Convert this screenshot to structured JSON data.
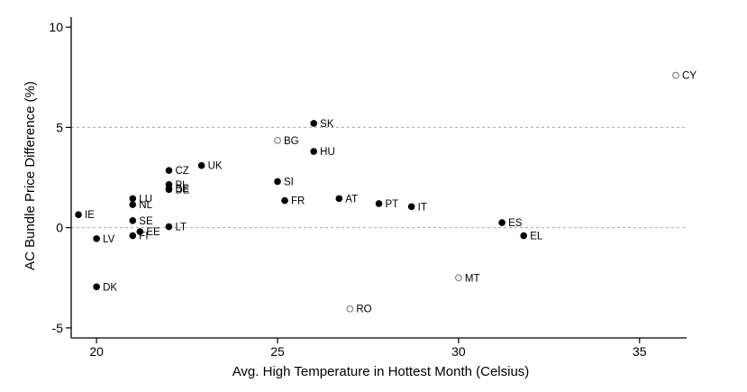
{
  "chart_data": {
    "type": "scatter",
    "xlabel": "Avg. High Temperature in Hottest Month (Celsius)",
    "ylabel": "AC Bundle Price Difference (%)",
    "xlim": [
      19.3,
      36.3
    ],
    "ylim": [
      -5.5,
      10.5
    ],
    "xticks": [
      20,
      25,
      30,
      35
    ],
    "yticks": [
      -5,
      0,
      5,
      10
    ],
    "reference_lines_y": [
      0,
      5
    ],
    "grid": false,
    "legend": "none",
    "colors": {
      "filled": "#000000",
      "hollow": "#888888",
      "ref_line": "#aaaaaa"
    },
    "points": [
      {
        "label": "IE",
        "x": 19.5,
        "y": 0.65,
        "marker": "filled"
      },
      {
        "label": "LV",
        "x": 20.0,
        "y": -0.55,
        "marker": "filled"
      },
      {
        "label": "DK",
        "x": 20.0,
        "y": -2.95,
        "marker": "filled"
      },
      {
        "label": "LU",
        "x": 21.0,
        "y": 1.45,
        "marker": "filled"
      },
      {
        "label": "NL",
        "x": 21.0,
        "y": 1.15,
        "marker": "filled"
      },
      {
        "label": "SE",
        "x": 21.0,
        "y": 0.35,
        "marker": "filled"
      },
      {
        "label": "FI",
        "x": 21.0,
        "y": -0.4,
        "marker": "filled"
      },
      {
        "label": "EE",
        "x": 21.2,
        "y": -0.2,
        "marker": "filled"
      },
      {
        "label": "CZ",
        "x": 22.0,
        "y": 2.85,
        "marker": "filled"
      },
      {
        "label": "PL",
        "x": 22.0,
        "y": 2.15,
        "marker": "filled"
      },
      {
        "label": "BE",
        "x": 22.0,
        "y": 1.95,
        "marker": "filled"
      },
      {
        "label": "DE",
        "x": 22.0,
        "y": 1.9,
        "marker": "filled"
      },
      {
        "label": "LT",
        "x": 22.0,
        "y": 0.05,
        "marker": "filled"
      },
      {
        "label": "UK",
        "x": 22.9,
        "y": 3.1,
        "marker": "filled"
      },
      {
        "label": "BG",
        "x": 25.0,
        "y": 4.35,
        "marker": "hollow"
      },
      {
        "label": "SI",
        "x": 25.0,
        "y": 2.3,
        "marker": "filled"
      },
      {
        "label": "FR",
        "x": 25.2,
        "y": 1.35,
        "marker": "filled"
      },
      {
        "label": "SK",
        "x": 26.0,
        "y": 5.2,
        "marker": "filled"
      },
      {
        "label": "HU",
        "x": 26.0,
        "y": 3.8,
        "marker": "filled"
      },
      {
        "label": "AT",
        "x": 26.7,
        "y": 1.45,
        "marker": "filled"
      },
      {
        "label": "RO",
        "x": 27.0,
        "y": -4.05,
        "marker": "hollow"
      },
      {
        "label": "PT",
        "x": 27.8,
        "y": 1.2,
        "marker": "filled"
      },
      {
        "label": "IT",
        "x": 28.7,
        "y": 1.05,
        "marker": "filled"
      },
      {
        "label": "MT",
        "x": 30.0,
        "y": -2.5,
        "marker": "hollow"
      },
      {
        "label": "ES",
        "x": 31.2,
        "y": 0.25,
        "marker": "filled"
      },
      {
        "label": "EL",
        "x": 31.8,
        "y": -0.4,
        "marker": "filled"
      },
      {
        "label": "CY",
        "x": 36.0,
        "y": 7.6,
        "marker": "hollow"
      }
    ]
  }
}
